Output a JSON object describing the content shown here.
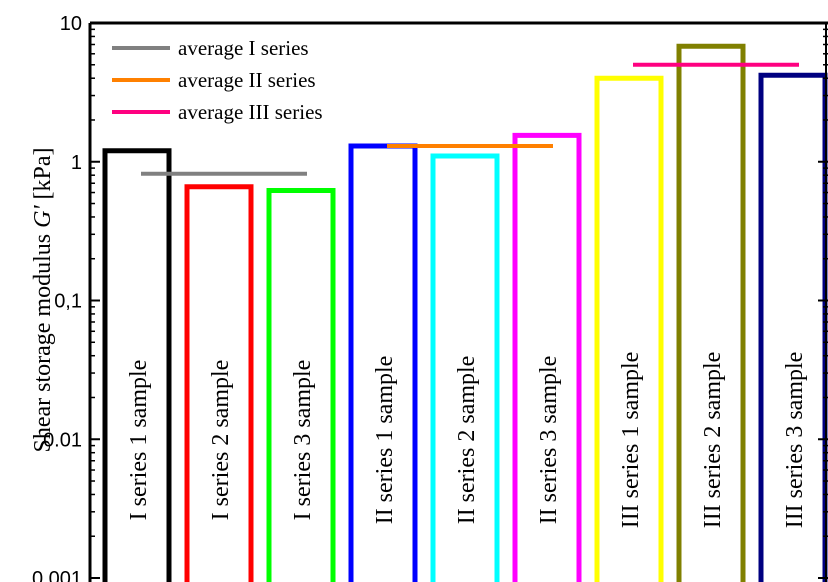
{
  "chart_data": {
    "type": "bar",
    "ylabel_prefix": "Shear storage modulus ",
    "ylabel_symbol": "G'",
    "ylabel_unit": " [kPa]",
    "y_scale": "log",
    "ylim": [
      0.001,
      10
    ],
    "y_ticks": [
      {
        "value": 0.001,
        "label": "0.001"
      },
      {
        "value": 0.01,
        "label": "0.01"
      },
      {
        "value": 0.1,
        "label": "0,1"
      },
      {
        "value": 1,
        "label": "1"
      },
      {
        "value": 10,
        "label": "10"
      }
    ],
    "bars": [
      {
        "label": "I series 1 sample",
        "value": 1.2,
        "color": "#000000"
      },
      {
        "label": "I series 2 sample",
        "value": 0.66,
        "color": "#ff0000"
      },
      {
        "label": "I series 3 sample",
        "value": 0.62,
        "color": "#00ff00"
      },
      {
        "label": "II series 1 sample",
        "value": 1.3,
        "color": "#0000ff"
      },
      {
        "label": "II series 2 sample",
        "value": 1.1,
        "color": "#00ffff"
      },
      {
        "label": "II series 3 sample",
        "value": 1.55,
        "color": "#ff00ff"
      },
      {
        "label": "III series 1 sample",
        "value": 4.0,
        "color": "#ffff00"
      },
      {
        "label": "III series 2 sample",
        "value": 6.8,
        "color": "#808000"
      },
      {
        "label": "III series 3 sample",
        "value": 4.2,
        "color": "#000080"
      }
    ],
    "averages": [
      {
        "name": "average I series",
        "value": 0.82,
        "color": "#808080",
        "from_bar": 0,
        "to_bar": 2
      },
      {
        "name": "average II series",
        "value": 1.3,
        "color": "#ff8000",
        "from_bar": 3,
        "to_bar": 5
      },
      {
        "name": "average III series",
        "value": 5.0,
        "color": "#ff0080",
        "from_bar": 6,
        "to_bar": 8
      }
    ],
    "legend_position": "top-left",
    "grid": false
  }
}
